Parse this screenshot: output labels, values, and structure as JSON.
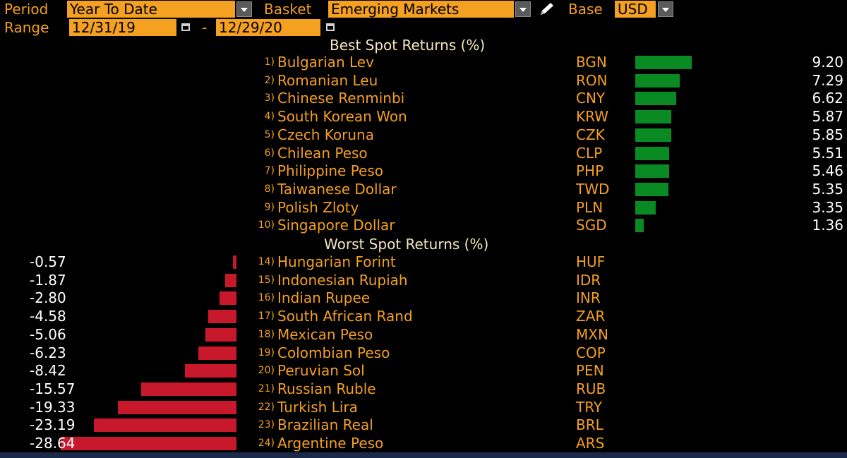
{
  "toolbar": {
    "period_label": "Period",
    "period_value": "Year To Date",
    "basket_label": "Basket",
    "basket_value": "Emerging Markets",
    "base_label": "Base",
    "base_value": "USD",
    "range_label": "Range",
    "range_start": "12/31/19",
    "range_separator": "-",
    "range_end": "12/29/20"
  },
  "best": {
    "title": "Best Spot Returns (%)",
    "rows": [
      {
        "rank": "1)",
        "name": "Bulgarian Lev",
        "code": "BGN",
        "value": "9.20",
        "num": 9.2
      },
      {
        "rank": "2)",
        "name": "Romanian Leu",
        "code": "RON",
        "value": "7.29",
        "num": 7.29
      },
      {
        "rank": "3)",
        "name": "Chinese Renminbi",
        "code": "CNY",
        "value": "6.62",
        "num": 6.62
      },
      {
        "rank": "4)",
        "name": "South Korean Won",
        "code": "KRW",
        "value": "5.87",
        "num": 5.87
      },
      {
        "rank": "5)",
        "name": "Czech Koruna",
        "code": "CZK",
        "value": "5.85",
        "num": 5.85
      },
      {
        "rank": "6)",
        "name": "Chilean Peso",
        "code": "CLP",
        "value": "5.51",
        "num": 5.51
      },
      {
        "rank": "7)",
        "name": "Philippine Peso",
        "code": "PHP",
        "value": "5.46",
        "num": 5.46
      },
      {
        "rank": "8)",
        "name": "Taiwanese Dollar",
        "code": "TWD",
        "value": "5.35",
        "num": 5.35
      },
      {
        "rank": "9)",
        "name": "Polish Zloty",
        "code": "PLN",
        "value": "3.35",
        "num": 3.35
      },
      {
        "rank": "10)",
        "name": "Singapore Dollar",
        "code": "SGD",
        "value": "1.36",
        "num": 1.36
      }
    ]
  },
  "worst": {
    "title": "Worst Spot Returns (%)",
    "rows": [
      {
        "rank": "14)",
        "name": "Hungarian Forint",
        "code": "HUF",
        "value": "-0.57",
        "num": -0.57
      },
      {
        "rank": "15)",
        "name": "Indonesian Rupiah",
        "code": "IDR",
        "value": "-1.87",
        "num": -1.87
      },
      {
        "rank": "16)",
        "name": "Indian Rupee",
        "code": "INR",
        "value": "-2.80",
        "num": -2.8
      },
      {
        "rank": "17)",
        "name": "South African Rand",
        "code": "ZAR",
        "value": "-4.58",
        "num": -4.58
      },
      {
        "rank": "18)",
        "name": "Mexican Peso",
        "code": "MXN",
        "value": "-5.06",
        "num": -5.06
      },
      {
        "rank": "19)",
        "name": "Colombian Peso",
        "code": "COP",
        "value": "-6.23",
        "num": -6.23
      },
      {
        "rank": "20)",
        "name": "Peruvian Sol",
        "code": "PEN",
        "value": "-8.42",
        "num": -8.42
      },
      {
        "rank": "21)",
        "name": "Russian Ruble",
        "code": "RUB",
        "value": "-15.57",
        "num": -15.57
      },
      {
        "rank": "22)",
        "name": "Turkish Lira",
        "code": "TRY",
        "value": "-19.33",
        "num": -19.33
      },
      {
        "rank": "23)",
        "name": "Brazilian Real",
        "code": "BRL",
        "value": "-23.19",
        "num": -23.19
      },
      {
        "rank": "24)",
        "name": "Argentine Peso",
        "code": "ARS",
        "value": "-28.64",
        "num": -28.64
      }
    ]
  },
  "colors": {
    "accent": "#f4a020",
    "positive_bar": "#0a8a22",
    "negative_bar": "#c8182c",
    "value_text": "#ffffff",
    "title_text": "#f4e6c0",
    "background": "#000000"
  },
  "icons": {
    "dropdown": "chevron-down-icon",
    "calendar": "calendar-icon",
    "edit": "pencil-icon"
  }
}
